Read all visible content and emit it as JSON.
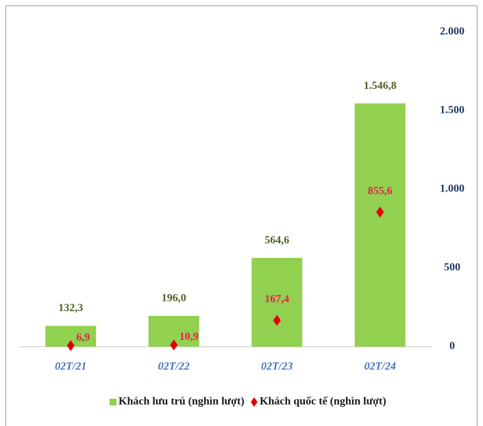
{
  "chart_data": {
    "type": "bar",
    "categories": [
      "02T/21",
      "02T/22",
      "02T/23",
      "02T/24"
    ],
    "series": [
      {
        "name": "Khách lưu trú (nghìn lượt)",
        "color": "#92d050",
        "values": [
          132.3,
          196.0,
          564.6,
          1546.8
        ],
        "value_labels": [
          "132,3",
          "196,0",
          "564,6",
          "1.546,8"
        ]
      },
      {
        "name": "Khách quốc tế (nghìn lượt)",
        "color": "#e00000",
        "type": "scatter",
        "values": [
          6.9,
          10.9,
          167.4,
          855.6
        ],
        "value_labels": [
          "6,9",
          "10,9",
          "167,4",
          "855,6"
        ]
      }
    ],
    "ylim": [
      0,
      2000
    ],
    "yticks": [
      0,
      500,
      {
        "value": 1000,
        "label": "1.000"
      },
      {
        "value": 1500,
        "label": "1.500"
      },
      {
        "value": 2000,
        "label": "2.000"
      }
    ],
    "y_axis_side": "right",
    "legend": "bottom"
  }
}
